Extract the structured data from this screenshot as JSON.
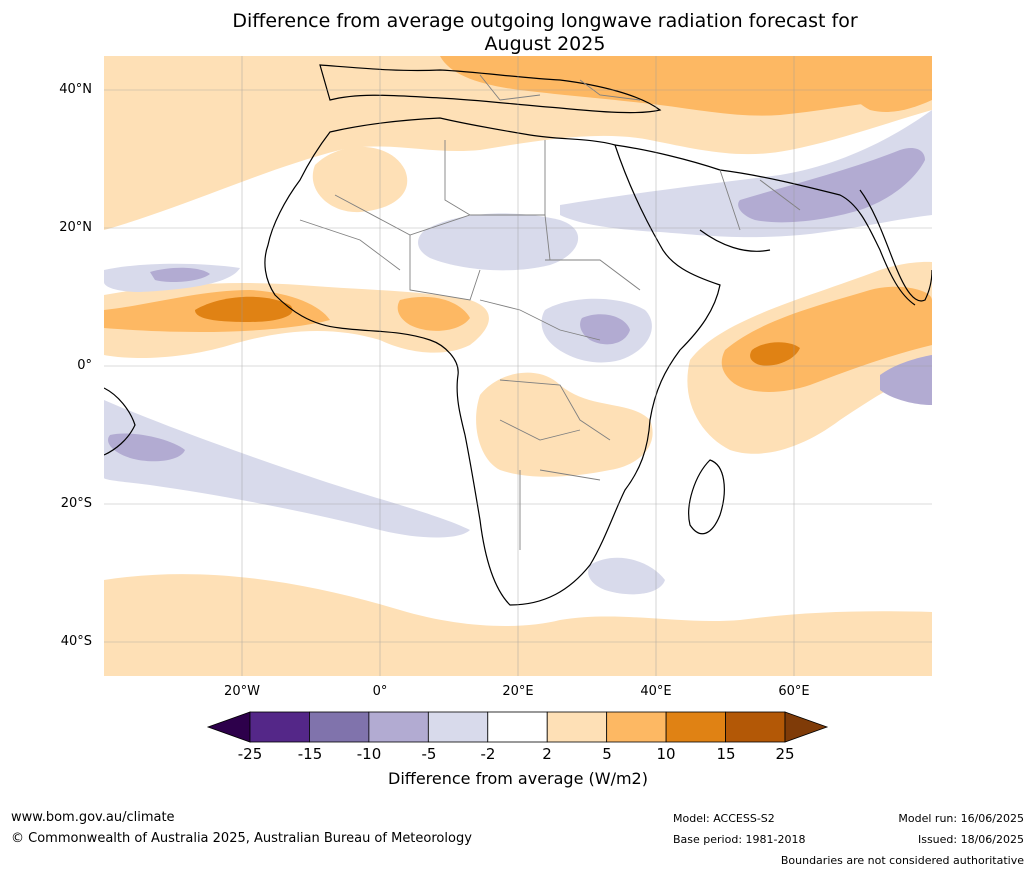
{
  "title_line1": "Difference from average outgoing longwave radiation forecast for",
  "title_line2": "August 2025",
  "lat_labels": [
    "40°N",
    "20°N",
    "0°",
    "20°S",
    "40°S"
  ],
  "lon_labels": [
    "20°W",
    "0°",
    "20°E",
    "40°E",
    "60°E"
  ],
  "colorbar": {
    "ticks": [
      "-25",
      "-15",
      "-10",
      "-5",
      "-2",
      "2",
      "5",
      "10",
      "15",
      "25"
    ],
    "colors": [
      "#2d004b",
      "#542788",
      "#8073ac",
      "#b2abd2",
      "#d8daeb",
      "#ffffff",
      "#fee0b6",
      "#fdb863",
      "#e08214",
      "#b35806",
      "#7f3b08"
    ],
    "label": "Difference from average (W/m2)"
  },
  "footer": {
    "website": "www.bom.gov.au/climate",
    "copyright": "© Commonwealth of Australia 2025, Australian Bureau of Meteorology",
    "model": "Model: ACCESS-S2",
    "base_period": "Base period: 1981-2018",
    "model_run": "Model run: 16/06/2025",
    "issued": "Issued: 18/06/2025",
    "disclaimer": "Boundaries are not considered authoritative"
  }
}
